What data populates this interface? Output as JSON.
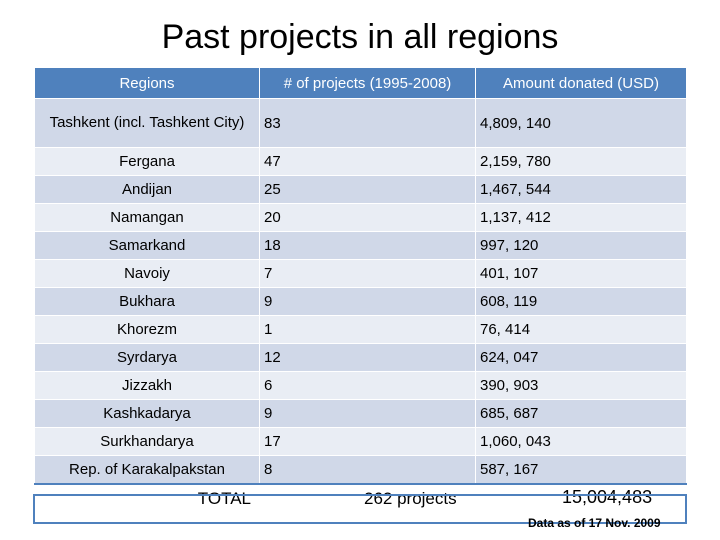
{
  "title": "Past projects in all regions",
  "table": {
    "headers": [
      "Regions",
      "# of projects (1995-2008)",
      "Amount donated (USD)"
    ],
    "rows": [
      {
        "region": "Tashkent (incl. Tashkent City)",
        "projects": "83",
        "amount": "4,809, 140"
      },
      {
        "region": "Fergana",
        "projects": "47",
        "amount": "2,159, 780"
      },
      {
        "region": "Andijan",
        "projects": "25",
        "amount": "1,467, 544"
      },
      {
        "region": "Namangan",
        "projects": "20",
        "amount": "1,137, 412"
      },
      {
        "region": "Samarkand",
        "projects": "18",
        "amount": "997, 120"
      },
      {
        "region": "Navoiy",
        "projects": "7",
        "amount": "401, 107"
      },
      {
        "region": "Bukhara",
        "projects": "9",
        "amount": "608, 119"
      },
      {
        "region": "Khorezm",
        "projects": "1",
        "amount": "76, 414"
      },
      {
        "region": "Syrdarya",
        "projects": "12",
        "amount": "624, 047"
      },
      {
        "region": "Jizzakh",
        "projects": "6",
        "amount": "390, 903"
      },
      {
        "region": "Kashkadarya",
        "projects": "9",
        "amount": "685, 687"
      },
      {
        "region": "Surkhandarya",
        "projects": "17",
        "amount": "1,060, 043"
      },
      {
        "region": "Rep. of Karakalpakstan",
        "projects": "8",
        "amount": "587, 167"
      }
    ],
    "total": {
      "label": "TOTAL",
      "projects": "262 projects",
      "amount": "15,004,483"
    }
  },
  "footnote": "Data as of 17 Nov. 2009",
  "colors": {
    "header": "#4f81bd",
    "row_odd": "#d0d8e8",
    "row_even": "#e9edf4"
  }
}
